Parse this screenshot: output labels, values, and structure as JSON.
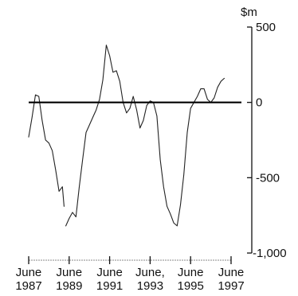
{
  "chart_data": {
    "type": "line",
    "title": "",
    "xlabel": "",
    "ylabel": "",
    "unit": "$m",
    "ylim": [
      -1000,
      500
    ],
    "xlim": [
      "1987-06",
      "1997-06"
    ],
    "yticks": [
      {
        "value": 500,
        "label": "500"
      },
      {
        "value": 0,
        "label": "0"
      },
      {
        "value": -500,
        "label": "-500"
      },
      {
        "value": -1000,
        "label": "-1,000"
      }
    ],
    "xticks": [
      {
        "value": "1987-06",
        "month": "June",
        "year": "1987"
      },
      {
        "value": "1989-06",
        "month": "June",
        "year": "1989"
      },
      {
        "value": "1991-06",
        "month": "June",
        "year": "1991"
      },
      {
        "value": "1993-06",
        "month": "June,",
        "year": "1993"
      },
      {
        "value": "1995-06",
        "month": "June",
        "year": "1995"
      },
      {
        "value": "1997-06",
        "month": "June",
        "year": "1997"
      }
    ],
    "zero_line": true,
    "grid": false,
    "series": [
      {
        "color": "#222222",
        "segments": [
          [
            {
              "x": "1987-06",
              "y": -230
            },
            {
              "x": "1987-08",
              "y": -100
            },
            {
              "x": "1987-10",
              "y": 50
            },
            {
              "x": "1987-12",
              "y": 40
            },
            {
              "x": "1988-02",
              "y": -120
            },
            {
              "x": "1988-04",
              "y": -250
            },
            {
              "x": "1988-06",
              "y": -270
            },
            {
              "x": "1988-08",
              "y": -320
            },
            {
              "x": "1988-10",
              "y": -450
            },
            {
              "x": "1988-12",
              "y": -590
            },
            {
              "x": "1989-02",
              "y": -560
            },
            {
              "x": "1989-03",
              "y": -690
            }
          ],
          [
            {
              "x": "1989-04",
              "y": -820
            },
            {
              "x": "1989-06",
              "y": -770
            },
            {
              "x": "1989-08",
              "y": -730
            },
            {
              "x": "1989-10",
              "y": -760
            },
            {
              "x": "1989-12",
              "y": -560
            },
            {
              "x": "1990-02",
              "y": -380
            },
            {
              "x": "1990-04",
              "y": -200
            },
            {
              "x": "1990-06",
              "y": -150
            },
            {
              "x": "1990-08",
              "y": -100
            },
            {
              "x": "1990-10",
              "y": -50
            },
            {
              "x": "1990-12",
              "y": 20
            },
            {
              "x": "1991-02",
              "y": 150
            },
            {
              "x": "1991-04",
              "y": 380
            },
            {
              "x": "1991-06",
              "y": 310
            },
            {
              "x": "1991-08",
              "y": 200
            },
            {
              "x": "1991-10",
              "y": 210
            },
            {
              "x": "1991-12",
              "y": 140
            },
            {
              "x": "1992-02",
              "y": 0
            },
            {
              "x": "1992-04",
              "y": -70
            },
            {
              "x": "1992-06",
              "y": -40
            },
            {
              "x": "1992-08",
              "y": 40
            },
            {
              "x": "1992-10",
              "y": -50
            },
            {
              "x": "1992-12",
              "y": -170
            },
            {
              "x": "1993-02",
              "y": -120
            },
            {
              "x": "1993-04",
              "y": -20
            },
            {
              "x": "1993-06",
              "y": 10
            },
            {
              "x": "1993-08",
              "y": 0
            },
            {
              "x": "1993-10",
              "y": -90
            },
            {
              "x": "1993-12",
              "y": -380
            },
            {
              "x": "1994-02",
              "y": -560
            },
            {
              "x": "1994-04",
              "y": -690
            },
            {
              "x": "1994-06",
              "y": -740
            },
            {
              "x": "1994-08",
              "y": -800
            },
            {
              "x": "1994-10",
              "y": -820
            },
            {
              "x": "1994-12",
              "y": -680
            },
            {
              "x": "1995-02",
              "y": -480
            },
            {
              "x": "1995-04",
              "y": -200
            },
            {
              "x": "1995-06",
              "y": -40
            },
            {
              "x": "1995-08",
              "y": 0
            },
            {
              "x": "1995-10",
              "y": 40
            },
            {
              "x": "1995-12",
              "y": 90
            },
            {
              "x": "1996-02",
              "y": 90
            },
            {
              "x": "1996-04",
              "y": 20
            },
            {
              "x": "1996-06",
              "y": 0
            },
            {
              "x": "1996-08",
              "y": 30
            },
            {
              "x": "1996-10",
              "y": 100
            },
            {
              "x": "1996-12",
              "y": 140
            },
            {
              "x": "1997-02",
              "y": 160
            }
          ]
        ]
      }
    ]
  }
}
